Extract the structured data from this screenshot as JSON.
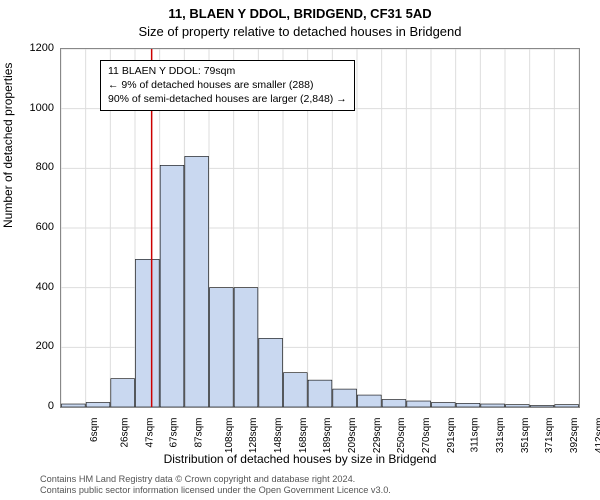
{
  "title": {
    "line1": "11, BLAEN Y DDOL, BRIDGEND, CF31 5AD",
    "line2": "Size of property relative to detached houses in Bridgend"
  },
  "chart": {
    "type": "histogram",
    "ylabel": "Number of detached properties",
    "xlabel": "Distribution of detached houses by size in Bridgend",
    "ylim": [
      0,
      1200
    ],
    "yticks": [
      0,
      200,
      400,
      600,
      800,
      1000,
      1200
    ],
    "xtick_labels": [
      "6sqm",
      "26sqm",
      "47sqm",
      "67sqm",
      "87sqm",
      "108sqm",
      "128sqm",
      "148sqm",
      "168sqm",
      "189sqm",
      "209sqm",
      "229sqm",
      "250sqm",
      "270sqm",
      "291sqm",
      "311sqm",
      "331sqm",
      "351sqm",
      "371sqm",
      "392sqm",
      "412sqm"
    ],
    "values": [
      10,
      15,
      95,
      495,
      810,
      840,
      400,
      400,
      230,
      115,
      90,
      60,
      40,
      25,
      20,
      15,
      12,
      10,
      8,
      5,
      8
    ],
    "bar_color": "#c9d8f0",
    "bar_stroke": "#000000",
    "grid_color": "#dddddd",
    "background_color": "#ffffff",
    "marker": {
      "value_sqm": 79,
      "color": "#cc0000",
      "fraction": 0.175
    }
  },
  "annotation": {
    "line1": "11 BLAEN Y DDOL: 79sqm",
    "line2": "← 9% of detached houses are smaller (288)",
    "line3": "90% of semi-detached houses are larger (2,848) →"
  },
  "footer": {
    "line1": "Contains HM Land Registry data © Crown copyright and database right 2024.",
    "line2": "Contains public sector information licensed under the Open Government Licence v3.0."
  },
  "style": {
    "title_fontsize": 13,
    "label_fontsize": 12,
    "tick_fontsize": 11,
    "xtick_fontsize": 10,
    "annotation_fontsize": 10.5,
    "footer_fontsize": 9.2,
    "footer_color": "#555555"
  }
}
